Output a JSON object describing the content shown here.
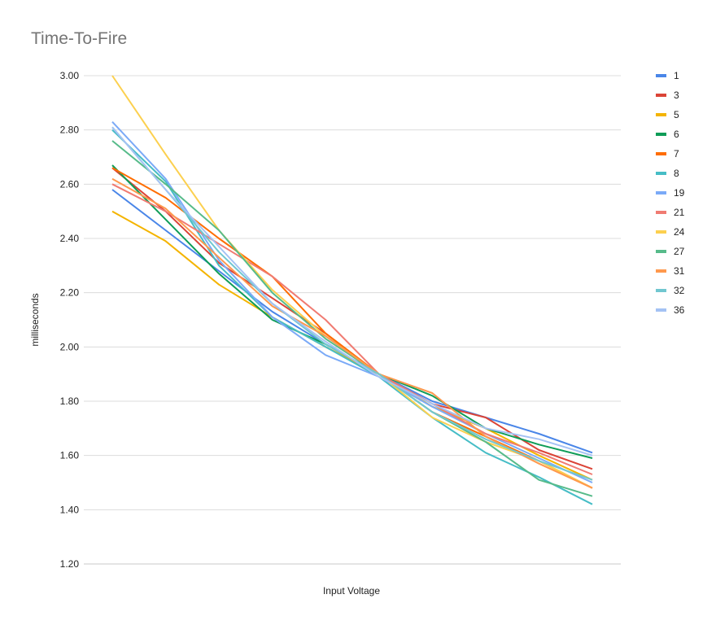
{
  "chart_data": {
    "type": "line",
    "title": "Time-To-Fire",
    "xlabel": "Input Voltage",
    "ylabel": "milliseconds",
    "ylim": [
      1.2,
      3.0
    ],
    "yticks": [
      "1.20",
      "1.40",
      "1.60",
      "1.80",
      "2.00",
      "2.20",
      "2.40",
      "2.60",
      "2.80",
      "3.00"
    ],
    "x": [
      1,
      2,
      3,
      4,
      5,
      6,
      7,
      8,
      9,
      10
    ],
    "grid": true,
    "legend_position": "right",
    "series": [
      {
        "name": "1",
        "color": "#4a86e8",
        "values": [
          2.58,
          2.43,
          2.28,
          2.13,
          2.01,
          1.9,
          1.8,
          1.74,
          1.68,
          1.61
        ]
      },
      {
        "name": "3",
        "color": "#db4437",
        "values": [
          2.66,
          2.5,
          2.31,
          2.18,
          2.05,
          1.9,
          1.79,
          1.74,
          1.62,
          1.55
        ]
      },
      {
        "name": "5",
        "color": "#f4b400",
        "values": [
          2.5,
          2.39,
          2.23,
          2.11,
          2.0,
          1.9,
          1.78,
          1.7,
          1.6,
          1.51
        ]
      },
      {
        "name": "6",
        "color": "#0f9d58",
        "values": [
          2.67,
          2.47,
          2.27,
          2.1,
          2.01,
          1.9,
          1.82,
          1.7,
          1.64,
          1.59
        ]
      },
      {
        "name": "7",
        "color": "#ff6d00",
        "values": [
          2.66,
          2.55,
          2.4,
          2.26,
          2.05,
          1.9,
          1.76,
          1.67,
          1.58,
          1.48
        ]
      },
      {
        "name": "8",
        "color": "#46bdc6",
        "values": [
          2.8,
          2.61,
          2.3,
          2.11,
          2.0,
          1.89,
          1.74,
          1.61,
          1.52,
          1.42
        ]
      },
      {
        "name": "19",
        "color": "#7baaf7",
        "values": [
          2.83,
          2.62,
          2.32,
          2.11,
          1.97,
          1.89,
          1.78,
          1.68,
          1.59,
          1.5
        ]
      },
      {
        "name": "21",
        "color": "#f07b72",
        "values": [
          2.6,
          2.5,
          2.38,
          2.26,
          2.1,
          1.9,
          1.79,
          1.68,
          1.61,
          1.53
        ]
      },
      {
        "name": "24",
        "color": "#fcd04f",
        "values": [
          3.0,
          2.71,
          2.43,
          2.21,
          2.04,
          1.9,
          1.74,
          1.65,
          1.58,
          1.48
        ]
      },
      {
        "name": "27",
        "color": "#57bb8a",
        "values": [
          2.76,
          2.6,
          2.43,
          2.2,
          2.03,
          1.9,
          1.76,
          1.65,
          1.51,
          1.45
        ]
      },
      {
        "name": "31",
        "color": "#ff994d",
        "values": [
          2.62,
          2.51,
          2.33,
          2.15,
          2.04,
          1.9,
          1.83,
          1.67,
          1.57,
          1.48
        ]
      },
      {
        "name": "32",
        "color": "#71c7d0",
        "values": [
          2.81,
          2.58,
          2.35,
          2.16,
          2.01,
          1.9,
          1.76,
          1.66,
          1.58,
          1.51
        ]
      },
      {
        "name": "36",
        "color": "#a4c2f4",
        "values": [
          2.81,
          2.58,
          2.37,
          2.16,
          2.02,
          1.89,
          1.79,
          1.7,
          1.66,
          1.6
        ]
      }
    ]
  }
}
